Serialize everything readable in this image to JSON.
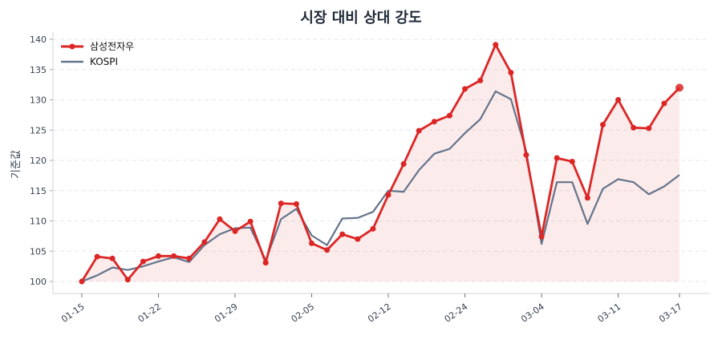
{
  "chart_data": {
    "type": "line",
    "title": "시장 대비 상대 강도",
    "xlabel": "",
    "ylabel": "기준값",
    "ylim": [
      98.5,
      141
    ],
    "yticks": [
      100,
      105,
      110,
      115,
      120,
      125,
      130,
      135,
      140
    ],
    "x_tick_labels": [
      {
        "index": 0,
        "label": "01-15"
      },
      {
        "index": 5,
        "label": "01-22"
      },
      {
        "index": 10,
        "label": "01-29"
      },
      {
        "index": 15,
        "label": "02-05"
      },
      {
        "index": 20,
        "label": "02-12"
      },
      {
        "index": 25,
        "label": "02-24"
      },
      {
        "index": 30,
        "label": "03-04"
      },
      {
        "index": 35,
        "label": "03-11"
      },
      {
        "index": 39,
        "label": "03-17"
      }
    ],
    "grid": "horizontal dashed",
    "legend_position": "top-left",
    "series": [
      {
        "name": "삼성전자우",
        "color": "#dc2626",
        "markers": true,
        "fill": true,
        "values": [
          100,
          104.1,
          103.8,
          100.3,
          103.3,
          104.2,
          104.2,
          103.8,
          106.5,
          110.3,
          108.3,
          109.9,
          103.1,
          112.9,
          112.8,
          106.3,
          105.2,
          107.8,
          107.0,
          108.7,
          114.3,
          119.4,
          124.9,
          126.4,
          127.4,
          131.8,
          133.2,
          139.1,
          134.5,
          120.9,
          107.4,
          120.4,
          119.8,
          113.8,
          125.9,
          130.0,
          125.4,
          125.3,
          129.4,
          132.0
        ]
      },
      {
        "name": "KOSPI",
        "color": "#64748b",
        "markers": false,
        "fill": false,
        "values": [
          100,
          101.0,
          102.3,
          101.9,
          102.5,
          103.3,
          104.0,
          103.2,
          106.0,
          107.8,
          108.8,
          108.9,
          103.5,
          110.3,
          112.0,
          107.6,
          106.0,
          110.4,
          110.5,
          111.5,
          115.0,
          114.8,
          118.4,
          121.1,
          121.9,
          124.5,
          126.8,
          131.4,
          130.1,
          121.5,
          106.2,
          116.4,
          116.4,
          109.5,
          115.3,
          116.9,
          116.4,
          114.4,
          115.7,
          117.6
        ]
      }
    ]
  }
}
